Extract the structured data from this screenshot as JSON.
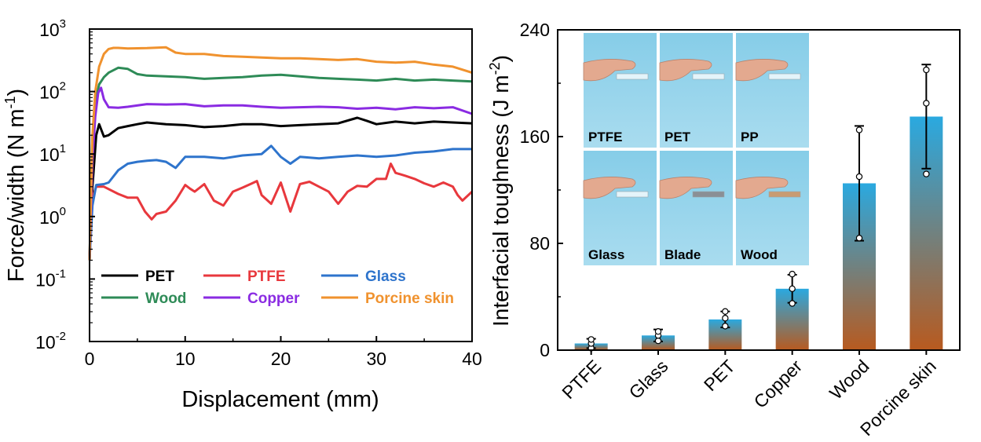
{
  "chart_data": [
    {
      "type": "line",
      "yscale": "log",
      "xlabel": "Displacement (mm)",
      "ylabel": "Force/width (N m",
      "ylabel_sup": "-1",
      "ylabel_close": ")",
      "xlim": [
        0,
        40
      ],
      "ylim": [
        0.01,
        1000
      ],
      "x_ticks": [
        "0",
        "10",
        "20",
        "30",
        "40"
      ],
      "y_ticks": [
        {
          "base": "10",
          "exp": "-2"
        },
        {
          "base": "10",
          "exp": "-1"
        },
        {
          "base": "10",
          "exp": "0"
        },
        {
          "base": "10",
          "exp": "1"
        },
        {
          "base": "10",
          "exp": "2"
        },
        {
          "base": "10",
          "exp": "3"
        }
      ],
      "legend_position": "bottom-left",
      "series": [
        {
          "name": "PET",
          "color": "#000000",
          "x": [
            0,
            0.3,
            0.7,
            1.0,
            1.5,
            2,
            3,
            4,
            5,
            6,
            8,
            10,
            12,
            14,
            16,
            18,
            20,
            22,
            24,
            26,
            28,
            29,
            30,
            32,
            34,
            36,
            38,
            40
          ],
          "y": [
            0.2,
            3,
            20,
            30,
            19,
            20,
            26,
            28,
            30,
            32,
            30,
            29,
            27,
            28,
            30,
            30,
            28,
            29,
            30,
            31,
            38,
            34,
            30,
            33,
            31,
            33,
            32,
            31
          ]
        },
        {
          "name": "PTFE",
          "color": "#e8383d",
          "x": [
            0,
            0.3,
            0.7,
            1.5,
            3,
            4,
            5,
            5.8,
            6.5,
            7,
            8,
            9,
            10,
            10.5,
            11,
            12,
            13,
            14,
            15,
            16,
            17,
            17.5,
            18,
            19,
            20,
            21,
            22,
            23,
            24,
            25,
            26,
            27,
            28,
            29,
            30,
            31,
            31.5,
            32,
            33,
            34,
            35,
            36,
            37,
            38,
            38.5,
            39,
            40
          ],
          "y": [
            0.2,
            2,
            3,
            3,
            2.3,
            2,
            2,
            1.2,
            0.9,
            1.1,
            1.2,
            1.8,
            3.2,
            2.8,
            2.5,
            3.3,
            1.8,
            1.5,
            2.5,
            2.9,
            3.4,
            3.7,
            2.2,
            1.6,
            3.5,
            1.2,
            3.3,
            3.6,
            3,
            2.5,
            1.6,
            2.5,
            3.1,
            3,
            4,
            4,
            7,
            5,
            4.5,
            4,
            3.4,
            3,
            3.5,
            3,
            2.2,
            1.8,
            2.5
          ]
        },
        {
          "name": "Glass",
          "color": "#2e74cc",
          "x": [
            0,
            0.3,
            0.7,
            1.5,
            2,
            3,
            4,
            5,
            6,
            7,
            8,
            9,
            10,
            12,
            14,
            16,
            18,
            19,
            20,
            21,
            22,
            24,
            26,
            28,
            30,
            32,
            34,
            36,
            38,
            40
          ],
          "y": [
            0.2,
            1.5,
            3.2,
            3.3,
            3.5,
            5.5,
            7,
            7.5,
            7.8,
            8,
            7.5,
            6,
            9,
            9,
            8.5,
            9.5,
            10,
            13.5,
            9,
            7,
            9,
            8.5,
            9,
            9.5,
            9,
            9.5,
            10.5,
            11,
            12,
            12
          ]
        },
        {
          "name": "Wood",
          "color": "#2e8b57",
          "x": [
            0,
            0.3,
            0.7,
            1.0,
            1.5,
            2,
            3,
            4,
            5,
            6,
            8,
            10,
            12,
            14,
            16,
            18,
            20,
            22,
            24,
            26,
            28,
            30,
            32,
            34,
            36,
            38,
            40
          ],
          "y": [
            0.2,
            20,
            80,
            130,
            170,
            200,
            240,
            230,
            190,
            180,
            175,
            170,
            160,
            165,
            170,
            180,
            185,
            175,
            165,
            160,
            155,
            150,
            160,
            150,
            155,
            150,
            145
          ]
        },
        {
          "name": "Copper",
          "color": "#8a2be2",
          "x": [
            0,
            0.3,
            0.6,
            0.9,
            1.2,
            1.5,
            2,
            3,
            4,
            6,
            8,
            10,
            12,
            14,
            16,
            18,
            20,
            22,
            24,
            26,
            28,
            30,
            32,
            34,
            36,
            38,
            40
          ],
          "y": [
            0.2,
            8,
            40,
            95,
            115,
            75,
            56,
            55,
            57,
            63,
            62,
            63,
            58,
            60,
            60,
            57,
            55,
            56,
            57,
            56,
            53,
            55,
            52,
            56,
            54,
            56,
            44
          ]
        },
        {
          "name": "Porcine skin",
          "color": "#f0922e",
          "x": [
            0,
            0.3,
            0.6,
            1.0,
            1.5,
            2.0,
            2.5,
            3,
            4,
            6,
            8,
            9,
            10,
            12,
            14,
            16,
            18,
            20,
            22,
            24,
            26,
            28,
            30,
            32,
            34,
            36,
            38,
            40
          ],
          "y": [
            0.2,
            20,
            100,
            250,
            400,
            480,
            500,
            500,
            490,
            495,
            510,
            420,
            400,
            400,
            370,
            360,
            350,
            340,
            340,
            330,
            320,
            330,
            300,
            290,
            300,
            270,
            250,
            200
          ]
        }
      ]
    },
    {
      "type": "bar",
      "ylabel": "Interfacial toughness (J m",
      "ylabel_sup": "-2",
      "ylabel_close": ")",
      "ylim": [
        0,
        240
      ],
      "y_ticks": [
        "0",
        "80",
        "160",
        "240"
      ],
      "categories": [
        "PTFE",
        "Glass",
        "PET",
        "Copper",
        "Wood",
        "Porcine skin"
      ],
      "values": [
        5,
        11,
        23,
        46,
        125,
        175
      ],
      "errors": [
        3.5,
        4.5,
        6,
        10.5,
        43,
        39
      ],
      "points": [
        [
          1.5,
          5,
          8
        ],
        [
          7,
          11,
          14
        ],
        [
          18,
          24,
          29
        ],
        [
          35,
          46,
          57
        ],
        [
          84,
          130,
          165
        ],
        [
          132,
          185,
          210
        ]
      ],
      "bar_gradient": {
        "top": "#2aa9e0",
        "bottom": "#b85a1f"
      },
      "inset_photos": [
        "PTFE",
        "PET",
        "PP",
        "Glass",
        "Blade",
        "Wood"
      ]
    }
  ]
}
